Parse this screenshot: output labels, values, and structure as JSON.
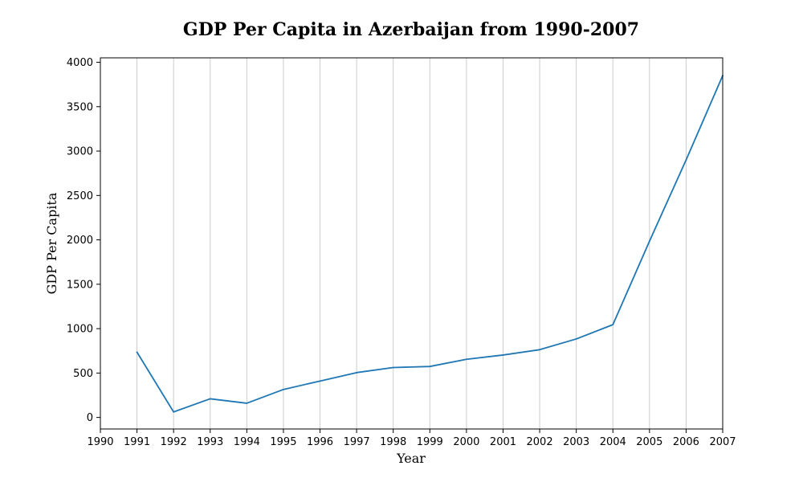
{
  "chart_data": {
    "type": "line",
    "title": "GDP Per Capita in Azerbaijan from 1990-2007",
    "xlabel": "Year",
    "ylabel": "GDP Per Capita",
    "x": [
      1991,
      1992,
      1993,
      1994,
      1995,
      1996,
      1997,
      1998,
      1999,
      2000,
      2001,
      2002,
      2003,
      2004,
      2005,
      2006,
      2007
    ],
    "series": [
      {
        "values": [
          735,
          62,
          210,
          160,
          315,
          410,
          505,
          562,
          574,
          655,
          703,
          763,
          884,
          1045,
          1985,
          2900,
          3850
        ],
        "color": "#1f77b4"
      }
    ],
    "xlim": [
      1990,
      2007
    ],
    "ylim": [
      -130,
      4050
    ],
    "xticks": [
      "1990",
      "1991",
      "1992",
      "1993",
      "1994",
      "1995",
      "1996",
      "1997",
      "1998",
      "1999",
      "2000",
      "2001",
      "2002",
      "2003",
      "2004",
      "2005",
      "2006",
      "2007"
    ],
    "yticks": [
      "0",
      "500",
      "1000",
      "1500",
      "2000",
      "2500",
      "3000",
      "3500",
      "4000"
    ],
    "grid": "vertical",
    "legend": "none"
  }
}
